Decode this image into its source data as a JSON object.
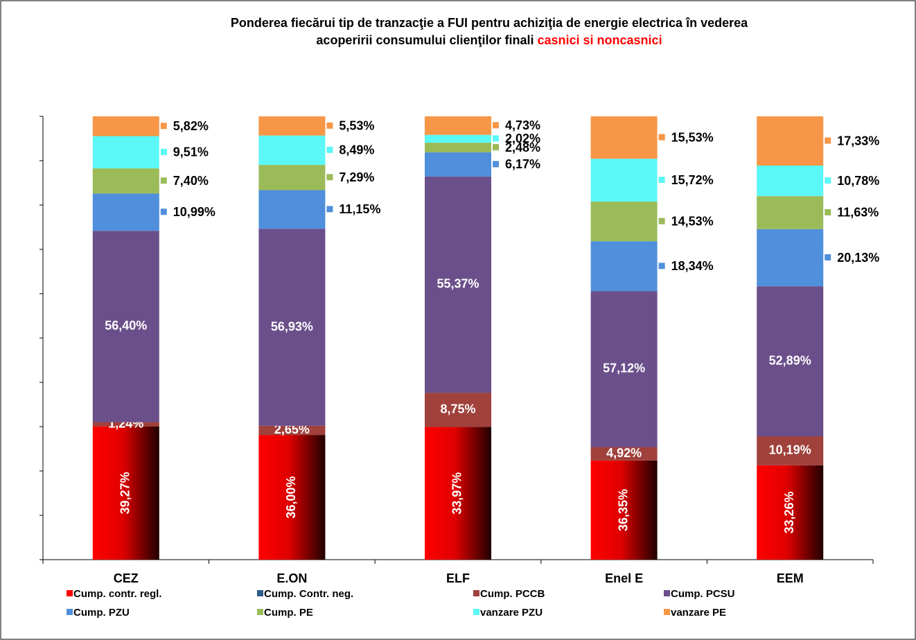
{
  "chart_data": {
    "type": "stacked100",
    "title_lines": [
      "Ponderea fiecărui tip de tranzacţie a FUI  pentru achiziţia de energie  electrica  în vederea",
      "acoperirii consumului  clienţilor finali "
    ],
    "title_highlight": "casnici si noncasnici",
    "categories": [
      "CEZ",
      "E.ON",
      "ELF",
      "Enel E",
      "EEM"
    ],
    "ylim": [
      0,
      100
    ],
    "yticks": [
      0,
      10,
      20,
      30,
      40,
      50,
      60,
      70,
      80,
      90,
      100
    ],
    "legend": "bottom",
    "series": [
      {
        "name": "Cump. contr. regl.",
        "color": "#ff0000",
        "values": [
          39.27,
          36.0,
          33.97,
          36.35,
          33.26
        ],
        "value_labels": [
          "39,27%",
          "36,00%",
          "33,97%",
          "36,35%",
          "33,26%"
        ]
      },
      {
        "name": "Cump. Contr. neg.",
        "color": "#2e5c8a",
        "values": [
          0,
          0,
          0,
          0,
          0
        ]
      },
      {
        "name": "Cump. PCCB",
        "color": "#a0413c",
        "values": [
          1.24,
          2.65,
          8.75,
          4.92,
          10.19
        ],
        "value_labels": [
          "1,24%",
          "2,65%",
          "8,75%",
          "4,92%",
          "10,19%"
        ]
      },
      {
        "name": "Cump. PCSU",
        "color": "#6b4f8a",
        "values": [
          56.4,
          56.93,
          55.37,
          57.12,
          52.89
        ],
        "value_labels": [
          "56,40%",
          "56,93%",
          "55,37%",
          "57,12%",
          "52,89%"
        ]
      },
      {
        "name": "Cump. PZU",
        "color": "#4f8fdb",
        "values": [
          10.99,
          11.15,
          6.17,
          18.34,
          20.13
        ],
        "value_labels": [
          "10,99%",
          "11,15%",
          "6,17%",
          "18,34%",
          "20,13%"
        ]
      },
      {
        "name": "Cump. PE",
        "color": "#9bbb59",
        "values": [
          7.4,
          7.29,
          2.48,
          14.53,
          11.63
        ],
        "value_labels": [
          "7,40%",
          "7,29%",
          "2,48%",
          "14,53%",
          "11,63%"
        ]
      },
      {
        "name": "vanzare  PZU",
        "color": "#5cf7f7",
        "values": [
          9.51,
          8.49,
          2.02,
          15.72,
          10.78
        ],
        "value_labels": [
          "9,51%",
          "8,49%",
          "2,02%",
          "15,72%",
          "10,78%"
        ]
      },
      {
        "name": "vanzare  PE",
        "color": "#f79646",
        "values": [
          5.82,
          5.53,
          4.73,
          15.53,
          17.33
        ],
        "value_labels": [
          "5,82%",
          "5,53%",
          "4,73%",
          "15,53%",
          "17,33%"
        ]
      }
    ]
  }
}
